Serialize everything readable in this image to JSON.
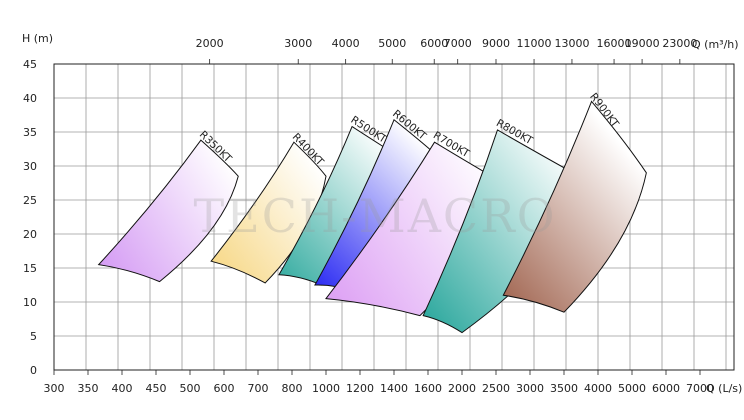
{
  "chart_data": {
    "type": "area",
    "title": "",
    "ylabel": "H (m)",
    "x_top_label": "Q (m³/h)",
    "x_bottom_label": "Q (L/s)",
    "ylim": [
      0,
      45
    ],
    "y_ticks": [
      "0",
      "5",
      "10",
      "15",
      "20",
      "25",
      "30",
      "35",
      "40",
      "45"
    ],
    "x_top_ticks": [
      "2000",
      "3000",
      "4000",
      "5000",
      "6000",
      "7000",
      "9000",
      "11000",
      "13000",
      "16000",
      "19000",
      "23000"
    ],
    "x_bottom_ticks": [
      "300",
      "350",
      "400",
      "450",
      "500",
      "600",
      "700",
      "800",
      "1000",
      "1200",
      "1400",
      "1600",
      "2000",
      "2500",
      "3000",
      "3500",
      "4000",
      "5000",
      "6000",
      "7000"
    ],
    "grid": true,
    "watermark": "TECH-MACRO",
    "series": [
      {
        "name": "R350KT",
        "color": "#d59cf4",
        "q_ls": [
          365,
          455,
          530,
          640
        ],
        "h_m": [
          15.5,
          13.0,
          33.8,
          28.5
        ]
      },
      {
        "name": "R400KT",
        "color": "#f7d98a",
        "q_ls": [
          560,
          720,
          810,
          1000
        ],
        "h_m": [
          16.0,
          12.8,
          33.5,
          28.5
        ]
      },
      {
        "name": "R500KT",
        "color": "#3aaea3",
        "q_ls": [
          760,
          970,
          1150,
          1450
        ],
        "h_m": [
          14.0,
          12.5,
          35.8,
          31.0
        ]
      },
      {
        "name": "R600KT",
        "color": "#2d2df2",
        "q_ls": [
          930,
          1170,
          1400,
          1700
        ],
        "h_m": [
          12.5,
          11.5,
          36.8,
          31.5
        ]
      },
      {
        "name": "R700KT",
        "color": "#dda0f4",
        "q_ls": [
          1000,
          1550,
          1670,
          2600
        ],
        "h_m": [
          10.5,
          8.0,
          33.5,
          27.5
        ]
      },
      {
        "name": "R800KT",
        "color": "#2fa99f",
        "q_ls": [
          1570,
          2000,
          2520,
          3900
        ],
        "h_m": [
          8.0,
          5.5,
          35.3,
          27.5
        ]
      },
      {
        "name": "R900KT",
        "color": "#a46a56",
        "q_ls": [
          2600,
          3500,
          3900,
          5400
        ],
        "h_m": [
          11.0,
          8.5,
          39.5,
          29.0
        ]
      }
    ]
  }
}
